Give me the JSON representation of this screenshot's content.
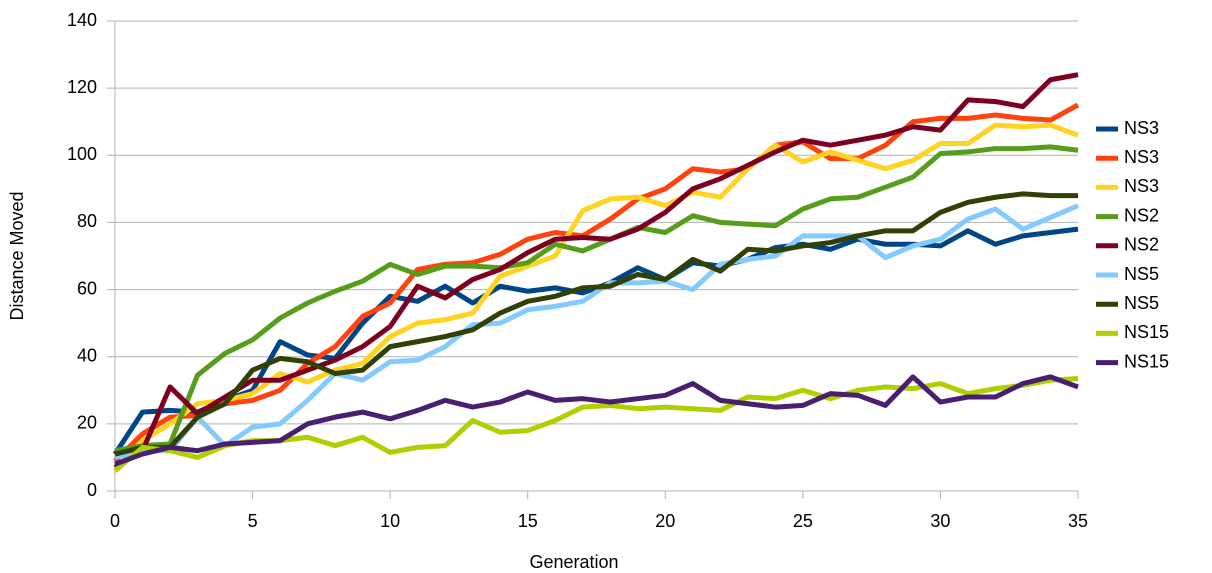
{
  "chart_data": {
    "type": "line",
    "x_label": "Generation",
    "y_label": "Distance Moved",
    "x": [
      0,
      1,
      2,
      3,
      4,
      5,
      6,
      7,
      8,
      9,
      10,
      11,
      12,
      13,
      14,
      15,
      16,
      17,
      18,
      19,
      20,
      21,
      22,
      23,
      24,
      25,
      26,
      27,
      28,
      29,
      30,
      31,
      32,
      33,
      34,
      35
    ],
    "xlim": [
      0,
      35
    ],
    "xticks": [
      0,
      5,
      10,
      15,
      20,
      25,
      30,
      35
    ],
    "ylim": [
      0,
      140
    ],
    "yticks": [
      0,
      20,
      40,
      60,
      80,
      100,
      120,
      140
    ],
    "grid": true,
    "legend": "right",
    "series": [
      {
        "name": "NS3",
        "color": "#004586",
        "values": [
          11,
          23.5,
          24,
          23.5,
          27,
          30,
          44.5,
          40.5,
          39.5,
          50,
          58,
          56.5,
          61,
          56,
          61,
          59.5,
          60.5,
          59,
          62,
          66.5,
          63,
          68,
          67,
          69,
          72.5,
          73.5,
          72,
          75,
          73.5,
          73.5,
          73,
          77.5,
          73.5,
          76,
          77,
          78
        ]
      },
      {
        "name": "NS3",
        "color": "#ff420e",
        "values": [
          9,
          17,
          22,
          22.5,
          26,
          27,
          30,
          38,
          43,
          52,
          56,
          66,
          67.5,
          68,
          70.5,
          75,
          77,
          76,
          81,
          87,
          90,
          96,
          95,
          96,
          103,
          104,
          99,
          99,
          103,
          110,
          111,
          111,
          112,
          111,
          110.5,
          115
        ]
      },
      {
        "name": "NS3",
        "color": "#ffd320",
        "values": [
          6,
          15,
          20,
          26,
          27,
          29,
          35,
          32.5,
          36,
          38,
          46,
          50,
          51,
          53,
          64,
          67,
          70,
          83.5,
          87,
          87.5,
          85,
          89,
          87.5,
          96,
          103,
          98,
          101,
          98.5,
          96,
          98.5,
          103.5,
          103.5,
          109,
          108.5,
          109,
          106
        ]
      },
      {
        "name": "NS2",
        "color": "#579d1c",
        "values": [
          12,
          13.5,
          14,
          34.5,
          41,
          45,
          51.5,
          56,
          59.5,
          62.5,
          67.5,
          64.5,
          67,
          67,
          66.5,
          68,
          73.5,
          71.5,
          75,
          78.5,
          77,
          82,
          80,
          79.5,
          79,
          84,
          87,
          87.5,
          90.5,
          93.5,
          100.5,
          101,
          102,
          102,
          102.5,
          101.5
        ]
      },
      {
        "name": "NS2",
        "color": "#7e0021",
        "values": [
          7,
          12,
          31,
          23,
          28,
          33,
          33,
          36,
          39,
          43,
          49,
          61,
          57.5,
          63,
          66,
          71,
          75,
          75.5,
          75,
          78,
          83,
          90,
          93,
          97,
          101,
          104.5,
          103,
          104.5,
          106,
          108.5,
          107.5,
          116.5,
          116,
          114.5,
          122.5,
          124
        ]
      },
      {
        "name": "NS5",
        "color": "#83caff",
        "values": [
          10,
          12,
          12,
          22,
          13.5,
          19,
          20,
          27,
          35,
          33,
          38.5,
          39,
          43,
          49.5,
          50,
          54,
          55,
          56.5,
          62,
          62,
          62.5,
          60,
          67.5,
          69,
          70,
          76,
          76,
          76,
          69.5,
          73,
          75,
          81,
          84,
          78,
          81.5,
          85
        ]
      },
      {
        "name": "NS5",
        "color": "#314004",
        "values": [
          11,
          13,
          13,
          22,
          26,
          36,
          39.5,
          38.5,
          35,
          36,
          43,
          44.5,
          46,
          48,
          53,
          56.5,
          58,
          60.5,
          61,
          64.5,
          63,
          69,
          65.5,
          72,
          71.5,
          73,
          74,
          76,
          77.5,
          77.5,
          83,
          86,
          87.5,
          88.5,
          88,
          88
        ]
      },
      {
        "name": "NS15",
        "color": "#aecf00",
        "values": [
          6,
          13,
          12,
          10,
          13.5,
          15,
          15,
          16,
          13.5,
          16,
          11.5,
          13,
          13.5,
          21,
          17.5,
          18,
          21,
          25,
          25.5,
          24.5,
          25,
          24.5,
          24,
          28,
          27.5,
          30,
          27.5,
          30,
          31,
          30.5,
          32,
          29,
          30.5,
          31.5,
          33,
          33.5
        ]
      },
      {
        "name": "NS15",
        "color": "#4b1f6f",
        "values": [
          8,
          11,
          13,
          12,
          14,
          14.5,
          15,
          20,
          22,
          23.5,
          21.5,
          24,
          27,
          25,
          26.5,
          29.5,
          27,
          27.5,
          26.5,
          27.5,
          28.5,
          32,
          27,
          26,
          25,
          25.5,
          29,
          28.5,
          25.5,
          34,
          26.5,
          28,
          28,
          32,
          34,
          31
        ]
      }
    ]
  }
}
